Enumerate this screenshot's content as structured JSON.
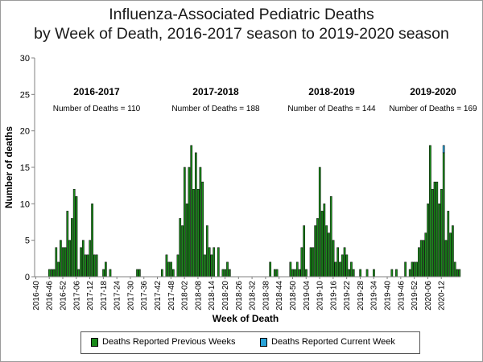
{
  "chart_data": {
    "type": "bar",
    "title_line1": "Influenza-Associated Pediatric Deaths",
    "title_line2": "by Week of Death, 2016-2017 season to 2019-2020 season",
    "xlabel": "Week of Death",
    "ylabel": "Number of deaths",
    "ylim": [
      0,
      30
    ],
    "yticks": [
      "0",
      "5",
      "10",
      "15",
      "20",
      "25",
      "30"
    ],
    "grid": false,
    "legend_placement": "bottom",
    "colors": {
      "previous": "#1a8a1a",
      "current": "#29a3d8",
      "axis": "#808080"
    },
    "xtick_labels": [
      "2016-40",
      "2016-46",
      "2016-52",
      "2017-06",
      "2017-12",
      "2017-18",
      "2017-24",
      "2017-30",
      "2017-36",
      "2017-42",
      "2017-48",
      "2018-02",
      "2018-08",
      "2018-14",
      "2018-20",
      "2018-26",
      "2018-32",
      "2018-38",
      "2018-44",
      "2018-50",
      "2019-04",
      "2019-10",
      "2019-16",
      "2019-22",
      "2019-28",
      "2019-34",
      "2019-40",
      "2019-46",
      "2019-52",
      "2020-06",
      "2020-12"
    ],
    "seasons": [
      {
        "label": "2016-2017",
        "note": "Number of Deaths = 110"
      },
      {
        "label": "2017-2018",
        "note": "Number of Deaths = 188"
      },
      {
        "label": "2018-2019",
        "note": "Number of Deaths = 144"
      },
      {
        "label": "2019-2020",
        "note": "Number of Deaths = 169"
      }
    ],
    "series": [
      {
        "name": "Deaths Reported Previous Weeks",
        "values": [
          0,
          0,
          0,
          0,
          0,
          0,
          1,
          1,
          1,
          4,
          2,
          5,
          4,
          4,
          9,
          5,
          8,
          12,
          11,
          1,
          4,
          5,
          3,
          3,
          5,
          10,
          3,
          3,
          0,
          0,
          1,
          2,
          0,
          1,
          0,
          0,
          0,
          0,
          0,
          0,
          0,
          0,
          0,
          0,
          0,
          1,
          1,
          0,
          0,
          0,
          0,
          0,
          0,
          0,
          0,
          0,
          1,
          0,
          3,
          2,
          2,
          1,
          0,
          3,
          8,
          7,
          15,
          10,
          15,
          18,
          12,
          17,
          12,
          15,
          13,
          3,
          7,
          4,
          3,
          4,
          0,
          4,
          0,
          1,
          1,
          2,
          1,
          0,
          0,
          0,
          0,
          0,
          0,
          0,
          0,
          0,
          0,
          0,
          0,
          0,
          0,
          0,
          0,
          0,
          2,
          0,
          1,
          1,
          0,
          0,
          0,
          0,
          0,
          2,
          1,
          1,
          2,
          1,
          4,
          7,
          1,
          0,
          4,
          4,
          7,
          8,
          15,
          9,
          10,
          7,
          6,
          11,
          5,
          2,
          4,
          2,
          3,
          4,
          3,
          1,
          2,
          1,
          0,
          0,
          1,
          0,
          0,
          1,
          0,
          0,
          1,
          0,
          0,
          0,
          0,
          0,
          0,
          0,
          1,
          0,
          1,
          0,
          0,
          0,
          2,
          0,
          1,
          2,
          2,
          2,
          4,
          5,
          5,
          6,
          10,
          18,
          12,
          13,
          13,
          10,
          12,
          17,
          5,
          9,
          6,
          7,
          2,
          1,
          1
        ]
      },
      {
        "name": "Deaths Reported Current Week",
        "values": [
          0,
          0,
          0,
          0,
          0,
          0,
          0,
          0,
          0,
          0,
          0,
          0,
          0,
          0,
          0,
          0,
          0,
          0,
          0,
          0,
          0,
          0,
          0,
          0,
          0,
          0,
          0,
          0,
          0,
          0,
          0,
          0,
          0,
          0,
          0,
          0,
          0,
          0,
          0,
          0,
          0,
          0,
          0,
          0,
          0,
          0,
          0,
          0,
          0,
          0,
          0,
          0,
          0,
          0,
          0,
          0,
          0,
          0,
          0,
          0,
          0,
          0,
          0,
          0,
          0,
          0,
          0,
          0,
          0,
          0,
          0,
          0,
          0,
          0,
          0,
          0,
          0,
          0,
          0,
          0,
          0,
          0,
          0,
          0,
          0,
          0,
          0,
          0,
          0,
          0,
          0,
          0,
          0,
          0,
          0,
          0,
          0,
          0,
          0,
          0,
          0,
          0,
          0,
          0,
          0,
          0,
          0,
          0,
          0,
          0,
          0,
          0,
          0,
          0,
          0,
          0,
          0,
          0,
          0,
          0,
          0,
          0,
          0,
          0,
          0,
          0,
          0,
          0,
          0,
          0,
          0,
          0,
          0,
          0,
          0,
          0,
          0,
          0,
          0,
          0,
          0,
          0,
          0,
          0,
          0,
          0,
          0,
          0,
          0,
          0,
          0,
          0,
          0,
          0,
          0,
          0,
          0,
          0,
          0,
          0,
          0,
          0,
          0,
          0,
          0,
          0,
          0,
          0,
          0,
          0,
          0,
          0,
          0,
          0,
          0,
          0,
          0,
          0,
          0,
          0,
          0,
          1,
          0,
          0,
          0,
          0,
          0,
          0,
          0,
          0,
          0
        ]
      }
    ]
  }
}
